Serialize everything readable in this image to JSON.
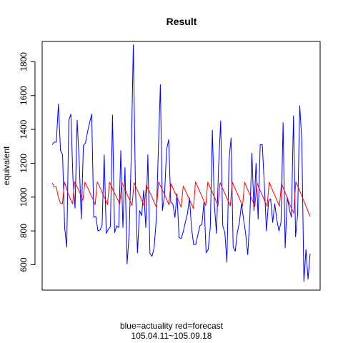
{
  "chart_data": {
    "type": "line",
    "title": "Result",
    "xlabel": "",
    "ylabel": "equivalent",
    "subtitle_line1": "blue=actuality red=forecast",
    "subtitle_line2": "105.04.11~105.09.18",
    "x_ticks_shown": false,
    "ylim": [
      450,
      1920
    ],
    "y_ticks": [
      "600",
      "800",
      "1000",
      "1200",
      "1400",
      "1600",
      "1800"
    ],
    "colors": {
      "actual": "#0000ff",
      "forecast": "#ff0000"
    },
    "series": [
      {
        "name": "actuality",
        "values": [
          1310,
          1325,
          1325,
          1550,
          1275,
          1250,
          820,
          705,
          1455,
          1490,
          1105,
          935,
          1455,
          1210,
          870,
          1305,
          1320,
          1385,
          1440,
          1490,
          880,
          885,
          800,
          805,
          835,
          1250,
          785,
          810,
          825,
          1485,
          790,
          830,
          820,
          1275,
          820,
          1175,
          605,
          780,
          1240,
          1900,
          1080,
          670,
          920,
          890,
          1040,
          820,
          1250,
          665,
          650,
          700,
          860,
          1260,
          1665,
          920,
          1010,
          1280,
          1340,
          970,
          960,
          880,
          1020,
          760,
          755,
          795,
          850,
          900,
          995,
          815,
          720,
          720,
          775,
          830,
          840,
          975,
          670,
          690,
          820,
          1395,
          950,
          785,
          1185,
          1450,
          830,
          790,
          615,
          1215,
          1350,
          705,
          680,
          790,
          850,
          960,
          870,
          785,
          660,
          870,
          1260,
          920,
          1200,
          870,
          1310,
          1310,
          1070,
          800,
          975,
          990,
          850,
          960,
          865,
          800,
          850,
          1440,
          700,
          1000,
          930,
          880,
          1480,
          765,
          900,
          1540,
          1340,
          500,
          690,
          515,
          665
        ]
      },
      {
        "name": "forecast",
        "values": [
          1085,
          1060,
          1060,
          1000,
          965,
          960,
          1088,
          1050,
          1015,
          985,
          960,
          1090,
          1065,
          1040,
          1010,
          980,
          1088,
          1063,
          1038,
          1010,
          985,
          955,
          1090,
          1065,
          1040,
          1010,
          985,
          955,
          1088,
          1063,
          1035,
          1010,
          985,
          958,
          1088,
          1060,
          1035,
          1005,
          980,
          950,
          1085,
          1058,
          1030,
          1003,
          975,
          945,
          1070,
          1045,
          1020,
          993,
          965,
          938,
          1090,
          1063,
          1038,
          1010,
          985,
          955,
          1080,
          1053,
          1025,
          1000,
          970,
          940,
          1065,
          1040,
          1013,
          988,
          960,
          932,
          1090,
          1063,
          1035,
          1008,
          980,
          950,
          1088,
          1060,
          1033,
          1005,
          978,
          948,
          1085,
          1058,
          1030,
          1003,
          975,
          948,
          1088,
          1060,
          1033,
          1005,
          975,
          948,
          1088,
          1058,
          1030,
          1003,
          975,
          945,
          1085,
          1055,
          1028,
          1000,
          973,
          945,
          1088,
          1058,
          1030,
          1003,
          975,
          945,
          1080,
          1050,
          1020,
          990,
          960,
          930,
          905,
          1090,
          1063,
          1035,
          1005,
          975,
          945,
          915,
          885
        ]
      }
    ]
  }
}
